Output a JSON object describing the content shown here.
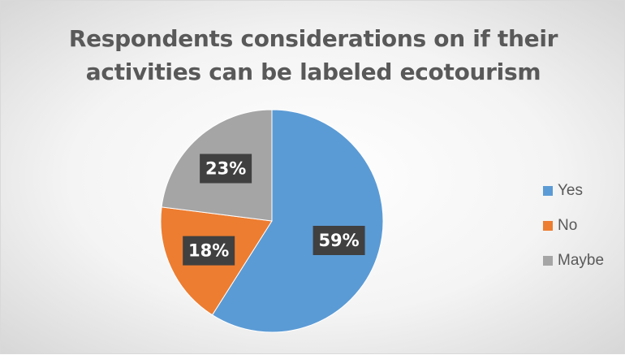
{
  "chart_data": {
    "type": "pie",
    "title_lines": [
      "Respondents considerations on if their",
      "activities can be labeled ecotourism"
    ],
    "categories": [
      "Yes",
      "No",
      "Maybe"
    ],
    "values": [
      59,
      18,
      23
    ],
    "labels": [
      "59%",
      "18%",
      "23%"
    ],
    "colors": [
      "#5b9bd5",
      "#ed7d31",
      "#a5a5a5"
    ],
    "legend_position": "right",
    "start_angle_deg": 0,
    "direction": "clockwise"
  }
}
